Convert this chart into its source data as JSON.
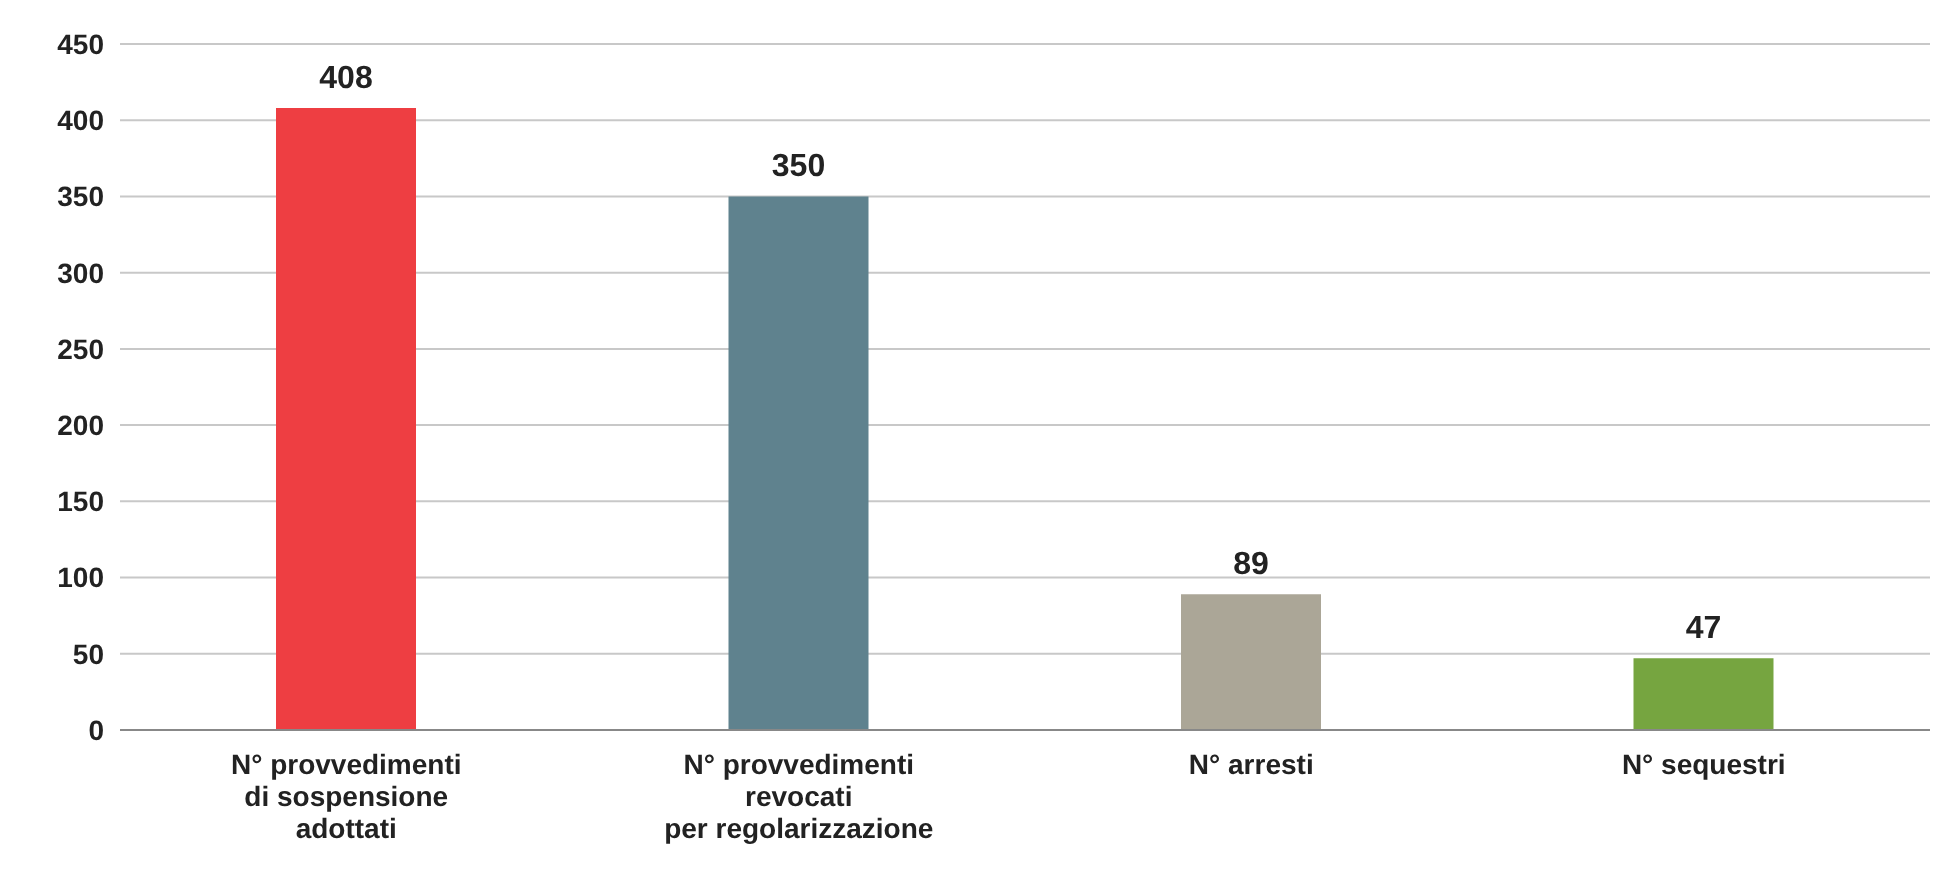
{
  "chart_data": {
    "type": "bar",
    "categories": [
      "N° provvedimenti\ndi sospensione\nadottati",
      "N° provvedimenti\nrevocati\nper regolarizzazione",
      "N° arresti",
      "N° sequestri"
    ],
    "values": [
      408,
      350,
      89,
      47
    ],
    "colors": [
      "#ee3e42",
      "#5f828e",
      "#aba697",
      "#76a540"
    ],
    "ylim": [
      0,
      450
    ],
    "yticks": [
      0,
      50,
      100,
      150,
      200,
      250,
      300,
      350,
      400,
      450
    ],
    "grid": "y",
    "data_labels": true
  }
}
